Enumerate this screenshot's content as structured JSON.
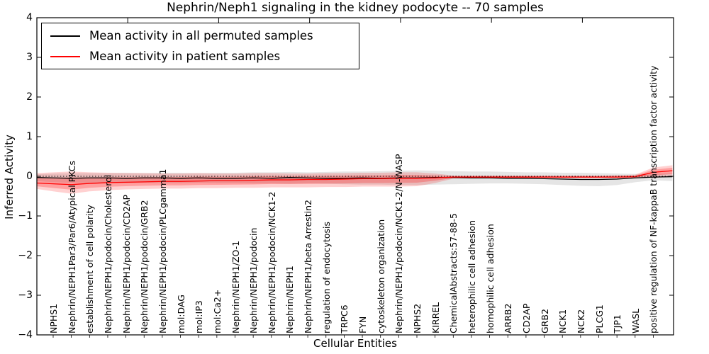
{
  "title": "Nephrin/Neph1 signaling in the kidney podocyte -- 70 samples",
  "axes": {
    "xlabel": "Cellular Entities",
    "ylabel": "Inferred Activity"
  },
  "legend": {
    "position": "upper left",
    "entries": [
      {
        "label": "Mean activity in all permuted samples",
        "color": "#000000"
      },
      {
        "label": "Mean activity in patient samples",
        "color": "#ff0000"
      }
    ]
  },
  "chart_data": {
    "type": "line",
    "title": "Nephrin/Neph1 signaling in the kidney podocyte -- 70 samples",
    "xlabel": "Cellular Entities",
    "ylabel": "Inferred Activity",
    "ylim": [
      -4,
      4
    ],
    "yticks": [
      4,
      3,
      2,
      1,
      0,
      -1,
      -2,
      -3,
      -4
    ],
    "ytick_labels": [
      "4",
      "3",
      "2",
      "1",
      "0",
      "−1",
      "−2",
      "−3",
      "−4"
    ],
    "grid": false,
    "zero_reference_line": 0,
    "legend_position": "upper left",
    "categories": [
      "NPHS1",
      "Nephrin/NEPH1Par3/Par6/Atypical PKCs",
      "establishment of cell polarity",
      "Nephrin/NEPH1/podocin/Cholesterol",
      "Nephrin/NEPH1/podocin/CD2AP",
      "Nephrin/NEPH1/podocin/GRB2",
      "Nephrin/NEPH1/podocin/PLCgamma1",
      "mol:DAG",
      "mol:IP3",
      "mol:Ca2+",
      "Nephrin/NEPH1/ZO-1",
      "Nephrin/NEPH1/podocin",
      "Nephrin/NEPH1/podocin/NCK1-2",
      "Nephrin/NEPH1",
      "Nephrin/NEPH1/beta Arrestin2",
      "regulation of endocytosis",
      "TRPC6",
      "FYN",
      "cytoskeleton organization",
      "Nephrin/NEPH1/podocin/NCK1-2/N-WASP",
      "NPHS2",
      "KIRREL",
      "ChemicalAbstracts:57-88-5",
      "heterophilic cell adhesion",
      "homophilic cell adhesion",
      "ARRB2",
      "CD2AP",
      "GRB2",
      "NCK1",
      "NCK2",
      "PLCG1",
      "TJP1",
      "WASL",
      "positive regulation of NF-kappaB transcription factor activity"
    ],
    "x": [
      -0.9,
      0,
      1,
      2,
      3,
      4,
      5,
      6,
      7,
      8,
      9,
      10,
      11,
      12,
      13,
      14,
      15,
      16,
      17,
      18,
      19,
      20,
      21,
      22,
      23,
      24,
      25,
      26,
      27,
      28,
      29,
      30,
      31,
      32,
      33,
      34.05
    ],
    "series": [
      {
        "name": "Mean activity in all permuted samples",
        "line_color": "#000000",
        "band_color": "#000000",
        "band_opacity": 0.1,
        "inner_band": false,
        "mean": [
          -0.03,
          -0.04,
          -0.05,
          -0.04,
          -0.04,
          -0.05,
          -0.04,
          -0.04,
          -0.05,
          -0.04,
          -0.05,
          -0.05,
          -0.04,
          -0.05,
          -0.03,
          -0.04,
          -0.05,
          -0.05,
          -0.04,
          -0.05,
          -0.04,
          -0.04,
          -0.03,
          -0.03,
          -0.04,
          -0.04,
          -0.05,
          -0.05,
          -0.06,
          -0.07,
          -0.08,
          -0.08,
          -0.07,
          -0.04,
          -0.02,
          -0.01
        ],
        "band_high": [
          0.05,
          0.07,
          0.08,
          0.08,
          0.08,
          0.09,
          0.08,
          0.09,
          0.09,
          0.08,
          0.09,
          0.09,
          0.1,
          0.1,
          0.11,
          0.1,
          0.11,
          0.12,
          0.12,
          0.13,
          0.14,
          0.15,
          0.14,
          0.13,
          0.12,
          0.12,
          0.11,
          0.1,
          0.1,
          0.09,
          0.09,
          0.08,
          0.07,
          0.06,
          0.06,
          0.08
        ],
        "band_low": [
          -0.12,
          -0.15,
          -0.17,
          -0.16,
          -0.16,
          -0.17,
          -0.16,
          -0.17,
          -0.17,
          -0.16,
          -0.17,
          -0.17,
          -0.18,
          -0.18,
          -0.19,
          -0.18,
          -0.19,
          -0.2,
          -0.21,
          -0.21,
          -0.22,
          -0.22,
          -0.21,
          -0.2,
          -0.19,
          -0.18,
          -0.18,
          -0.19,
          -0.2,
          -0.22,
          -0.24,
          -0.25,
          -0.22,
          -0.15,
          -0.1,
          -0.12
        ]
      },
      {
        "name": "Mean activity in patient samples",
        "line_color": "#ff0000",
        "band_color": "#ff0000",
        "band_opacity": 0.18,
        "inner_band": true,
        "mean": [
          -0.17,
          -0.19,
          -0.21,
          -0.18,
          -0.16,
          -0.15,
          -0.14,
          -0.13,
          -0.13,
          -0.12,
          -0.11,
          -0.11,
          -0.1,
          -0.09,
          -0.09,
          -0.08,
          -0.08,
          -0.07,
          -0.06,
          -0.06,
          -0.05,
          -0.05,
          -0.04,
          -0.02,
          -0.02,
          -0.02,
          -0.02,
          -0.02,
          -0.02,
          -0.02,
          -0.02,
          -0.02,
          -0.02,
          -0.01,
          0.1,
          0.14
        ],
        "band_high": [
          0.08,
          0.1,
          0.12,
          0.1,
          0.09,
          0.08,
          0.08,
          0.07,
          0.07,
          0.08,
          0.07,
          0.07,
          0.08,
          0.08,
          0.07,
          0.07,
          0.08,
          0.08,
          0.09,
          0.09,
          0.1,
          0.1,
          0.07,
          0.02,
          0.02,
          0.02,
          0.02,
          0.02,
          0.02,
          0.02,
          0.02,
          0.02,
          0.03,
          0.04,
          0.22,
          0.28
        ],
        "band_low": [
          -0.32,
          -0.38,
          -0.44,
          -0.38,
          -0.35,
          -0.33,
          -0.32,
          -0.31,
          -0.31,
          -0.3,
          -0.3,
          -0.29,
          -0.29,
          -0.28,
          -0.28,
          -0.28,
          -0.27,
          -0.27,
          -0.26,
          -0.26,
          -0.26,
          -0.25,
          -0.17,
          -0.06,
          -0.05,
          -0.05,
          -0.05,
          -0.05,
          -0.05,
          -0.05,
          -0.05,
          -0.05,
          -0.05,
          -0.05,
          -0.04,
          -0.01
        ]
      }
    ]
  }
}
